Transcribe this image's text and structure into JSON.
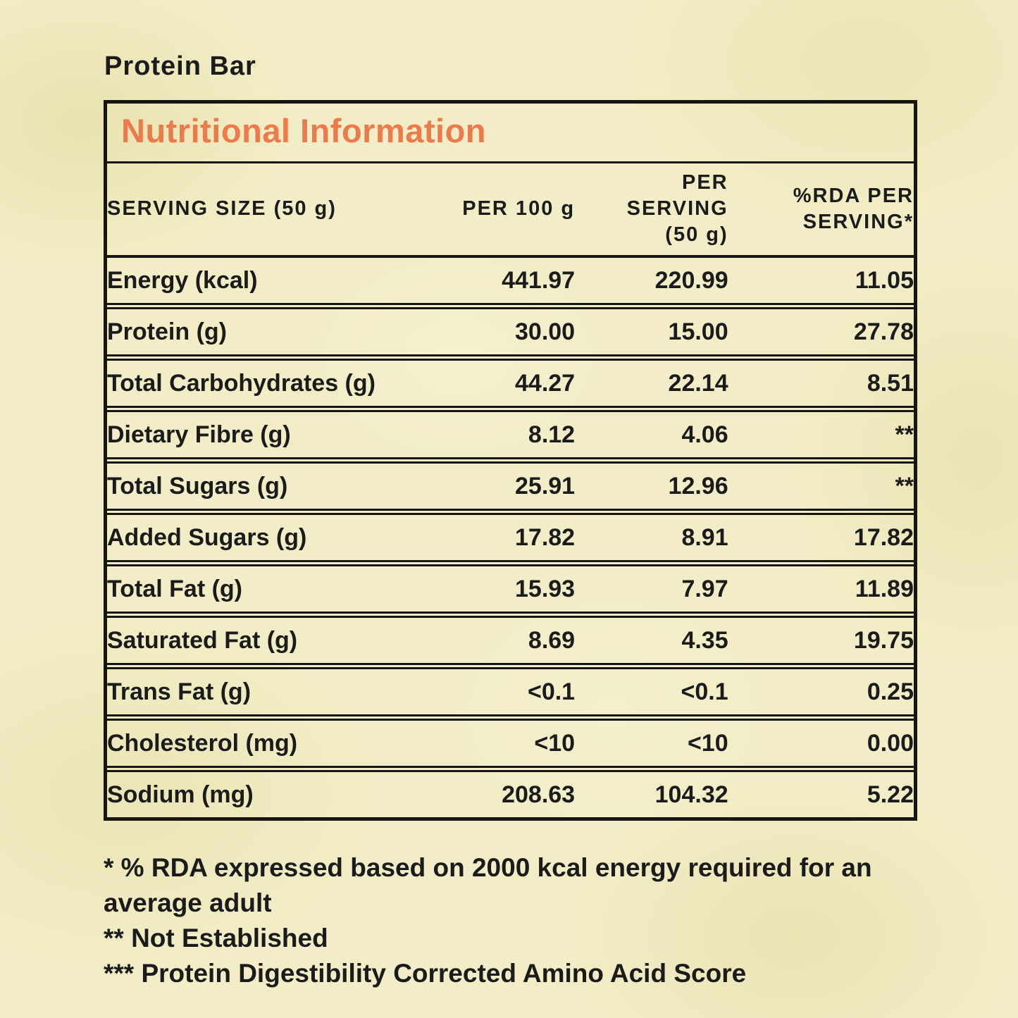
{
  "page": {
    "title": "Protein Bar"
  },
  "colors": {
    "background_cream": "#f2edc6",
    "accent_orange": "#ec7a4b",
    "text_black": "#1b1b1b",
    "border_black": "#151515"
  },
  "table": {
    "title": "Nutritional Information",
    "columns": [
      {
        "label": "SERVING SIZE (50 g)"
      },
      {
        "label": "PER 100 g"
      },
      {
        "lines": [
          "PER",
          "SERVING",
          "(50 g)"
        ]
      },
      {
        "lines": [
          "%RDA PER",
          "SERVING*"
        ]
      }
    ],
    "rows": [
      {
        "label": "Energy (kcal)",
        "per_100g": "441.97",
        "per_serving": "220.99",
        "rda_per_serving": "11.05"
      },
      {
        "label": "Protein (g)",
        "per_100g": "30.00",
        "per_serving": "15.00",
        "rda_per_serving": "27.78"
      },
      {
        "label": "Total Carbohydrates (g)",
        "per_100g": "44.27",
        "per_serving": "22.14",
        "rda_per_serving": "8.51"
      },
      {
        "label": "Dietary Fibre (g)",
        "per_100g": "8.12",
        "per_serving": "4.06",
        "rda_per_serving": "**"
      },
      {
        "label": "Total Sugars (g)",
        "per_100g": "25.91",
        "per_serving": "12.96",
        "rda_per_serving": "**"
      },
      {
        "label": "Added Sugars (g)",
        "per_100g": "17.82",
        "per_serving": "8.91",
        "rda_per_serving": "17.82"
      },
      {
        "label": "Total Fat (g)",
        "per_100g": "15.93",
        "per_serving": "7.97",
        "rda_per_serving": "11.89"
      },
      {
        "label": "Saturated Fat (g)",
        "per_100g": "8.69",
        "per_serving": "4.35",
        "rda_per_serving": "19.75"
      },
      {
        "label": "Trans Fat (g)",
        "per_100g": "<0.1",
        "per_serving": "<0.1",
        "rda_per_serving": "0.25"
      },
      {
        "label": "Cholesterol (mg)",
        "per_100g": "<10",
        "per_serving": "<10",
        "rda_per_serving": "0.00"
      },
      {
        "label": "Sodium (mg)",
        "per_100g": "208.63",
        "per_serving": "104.32",
        "rda_per_serving": "5.22"
      }
    ]
  },
  "footnotes": [
    "* % RDA expressed based on 2000 kcal energy required for an average adult",
    "** Not Established",
    "*** Protein Digestibility Corrected Amino Acid Score"
  ]
}
